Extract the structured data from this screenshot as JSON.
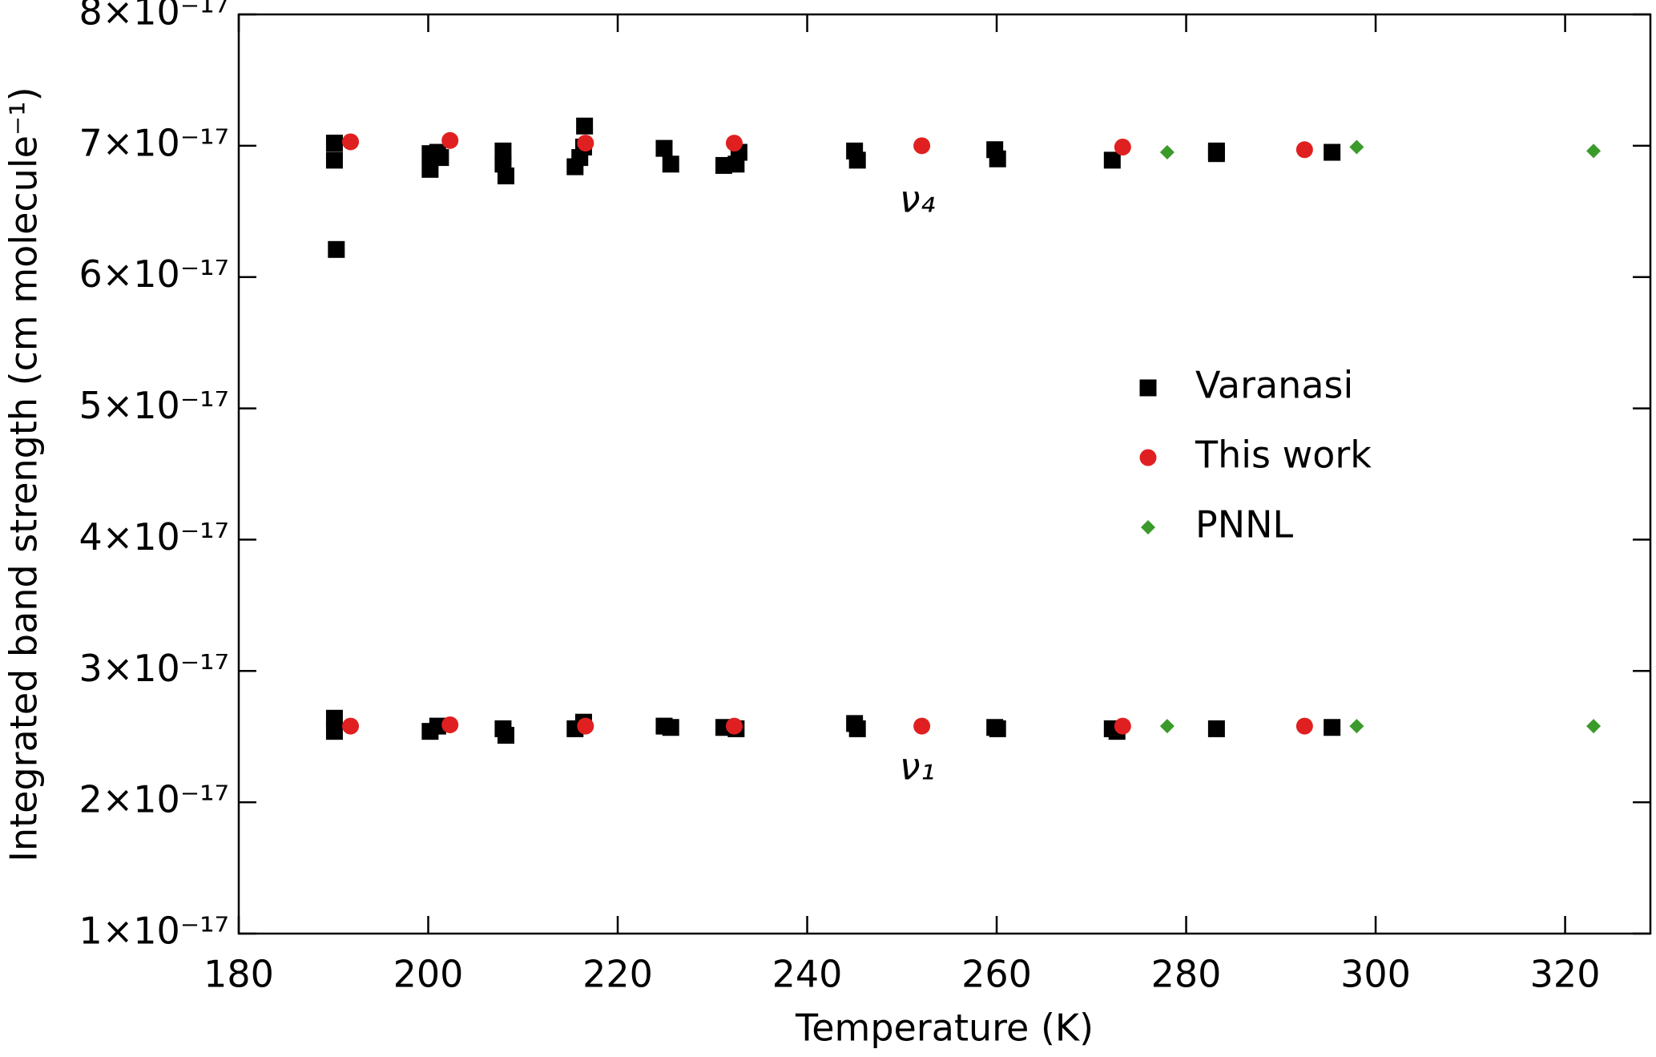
{
  "chart_data": {
    "type": "scatter",
    "x_label": "Temperature (K)",
    "y_label": "Integrated band strength (cm molecule⁻¹)",
    "annotations": [
      "ν₄",
      "ν₁"
    ],
    "xlim": [
      180,
      329
    ],
    "xticks": [
      180,
      200,
      220,
      240,
      260,
      280,
      300,
      320
    ],
    "ylim": [
      1e-17,
      8e-17
    ],
    "yticks": [
      {
        "value": 1e-17,
        "label": "1×10⁻¹⁷"
      },
      {
        "value": 2e-17,
        "label": "2×10⁻¹⁷"
      },
      {
        "value": 3e-17,
        "label": "3×10⁻¹⁷"
      },
      {
        "value": 4e-17,
        "label": "4×10⁻¹⁷"
      },
      {
        "value": 5e-17,
        "label": "5×10⁻¹⁷"
      },
      {
        "value": 6e-17,
        "label": "6×10⁻¹⁷"
      },
      {
        "value": 7e-17,
        "label": "7×10⁻¹⁷"
      },
      {
        "value": 8e-17,
        "label": "8×10⁻¹⁷"
      }
    ],
    "series": [
      {
        "name": "Varanasi",
        "color": "#000000",
        "marker": "square",
        "x": [
          190.1,
          190.1,
          190.3,
          200.2,
          200.2,
          201.0,
          201.3,
          207.9,
          207.9,
          208.2,
          215.5,
          216.0,
          216.4,
          216.5,
          224.9,
          225.6,
          231.2,
          232.5,
          232.8,
          245.0,
          245.3,
          259.8,
          260.1,
          272.2,
          283.2,
          283.2,
          295.4,
          190.1,
          190.1,
          200.2,
          201.0,
          207.9,
          208.2,
          215.5,
          216.4,
          224.9,
          225.6,
          231.2,
          232.5,
          245.0,
          245.3,
          259.8,
          260.1,
          272.2,
          272.7,
          283.2,
          295.4
        ],
        "values": [
          7.02e-17,
          6.89e-17,
          6.21e-17,
          6.94e-17,
          6.82e-17,
          6.95e-17,
          6.91e-17,
          6.96e-17,
          6.86e-17,
          6.77e-17,
          6.84e-17,
          6.91e-17,
          6.99e-17,
          7.15e-17,
          6.98e-17,
          6.86e-17,
          6.85e-17,
          6.86e-17,
          6.95e-17,
          6.96e-17,
          6.89e-17,
          6.97e-17,
          6.9e-17,
          6.89e-17,
          6.96e-17,
          6.94e-17,
          6.95e-17,
          2.64e-17,
          2.54e-17,
          2.54e-17,
          2.58e-17,
          2.56e-17,
          2.51e-17,
          2.56e-17,
          2.61e-17,
          2.58e-17,
          2.57e-17,
          2.57e-17,
          2.56e-17,
          2.6e-17,
          2.56e-17,
          2.57e-17,
          2.56e-17,
          2.56e-17,
          2.54e-17,
          2.56e-17,
          2.57e-17
        ]
      },
      {
        "name": "This work",
        "color": "#e02020",
        "marker": "circle",
        "x": [
          191.8,
          202.3,
          216.6,
          232.3,
          252.1,
          273.3,
          292.5,
          191.8,
          202.3,
          216.6,
          232.3,
          252.1,
          273.3,
          292.5
        ],
        "values": [
          7.03e-17,
          7.04e-17,
          7.02e-17,
          7.02e-17,
          7e-17,
          6.99e-17,
          6.97e-17,
          2.58e-17,
          2.59e-17,
          2.58e-17,
          2.58e-17,
          2.58e-17,
          2.58e-17,
          2.58e-17
        ]
      },
      {
        "name": "PNNL",
        "color": "#3a9a2a",
        "marker": "diamond",
        "x": [
          278,
          298,
          323,
          278,
          298,
          323
        ],
        "values": [
          6.95e-17,
          6.99e-17,
          6.96e-17,
          2.58e-17,
          2.58e-17,
          2.58e-17
        ]
      }
    ]
  }
}
